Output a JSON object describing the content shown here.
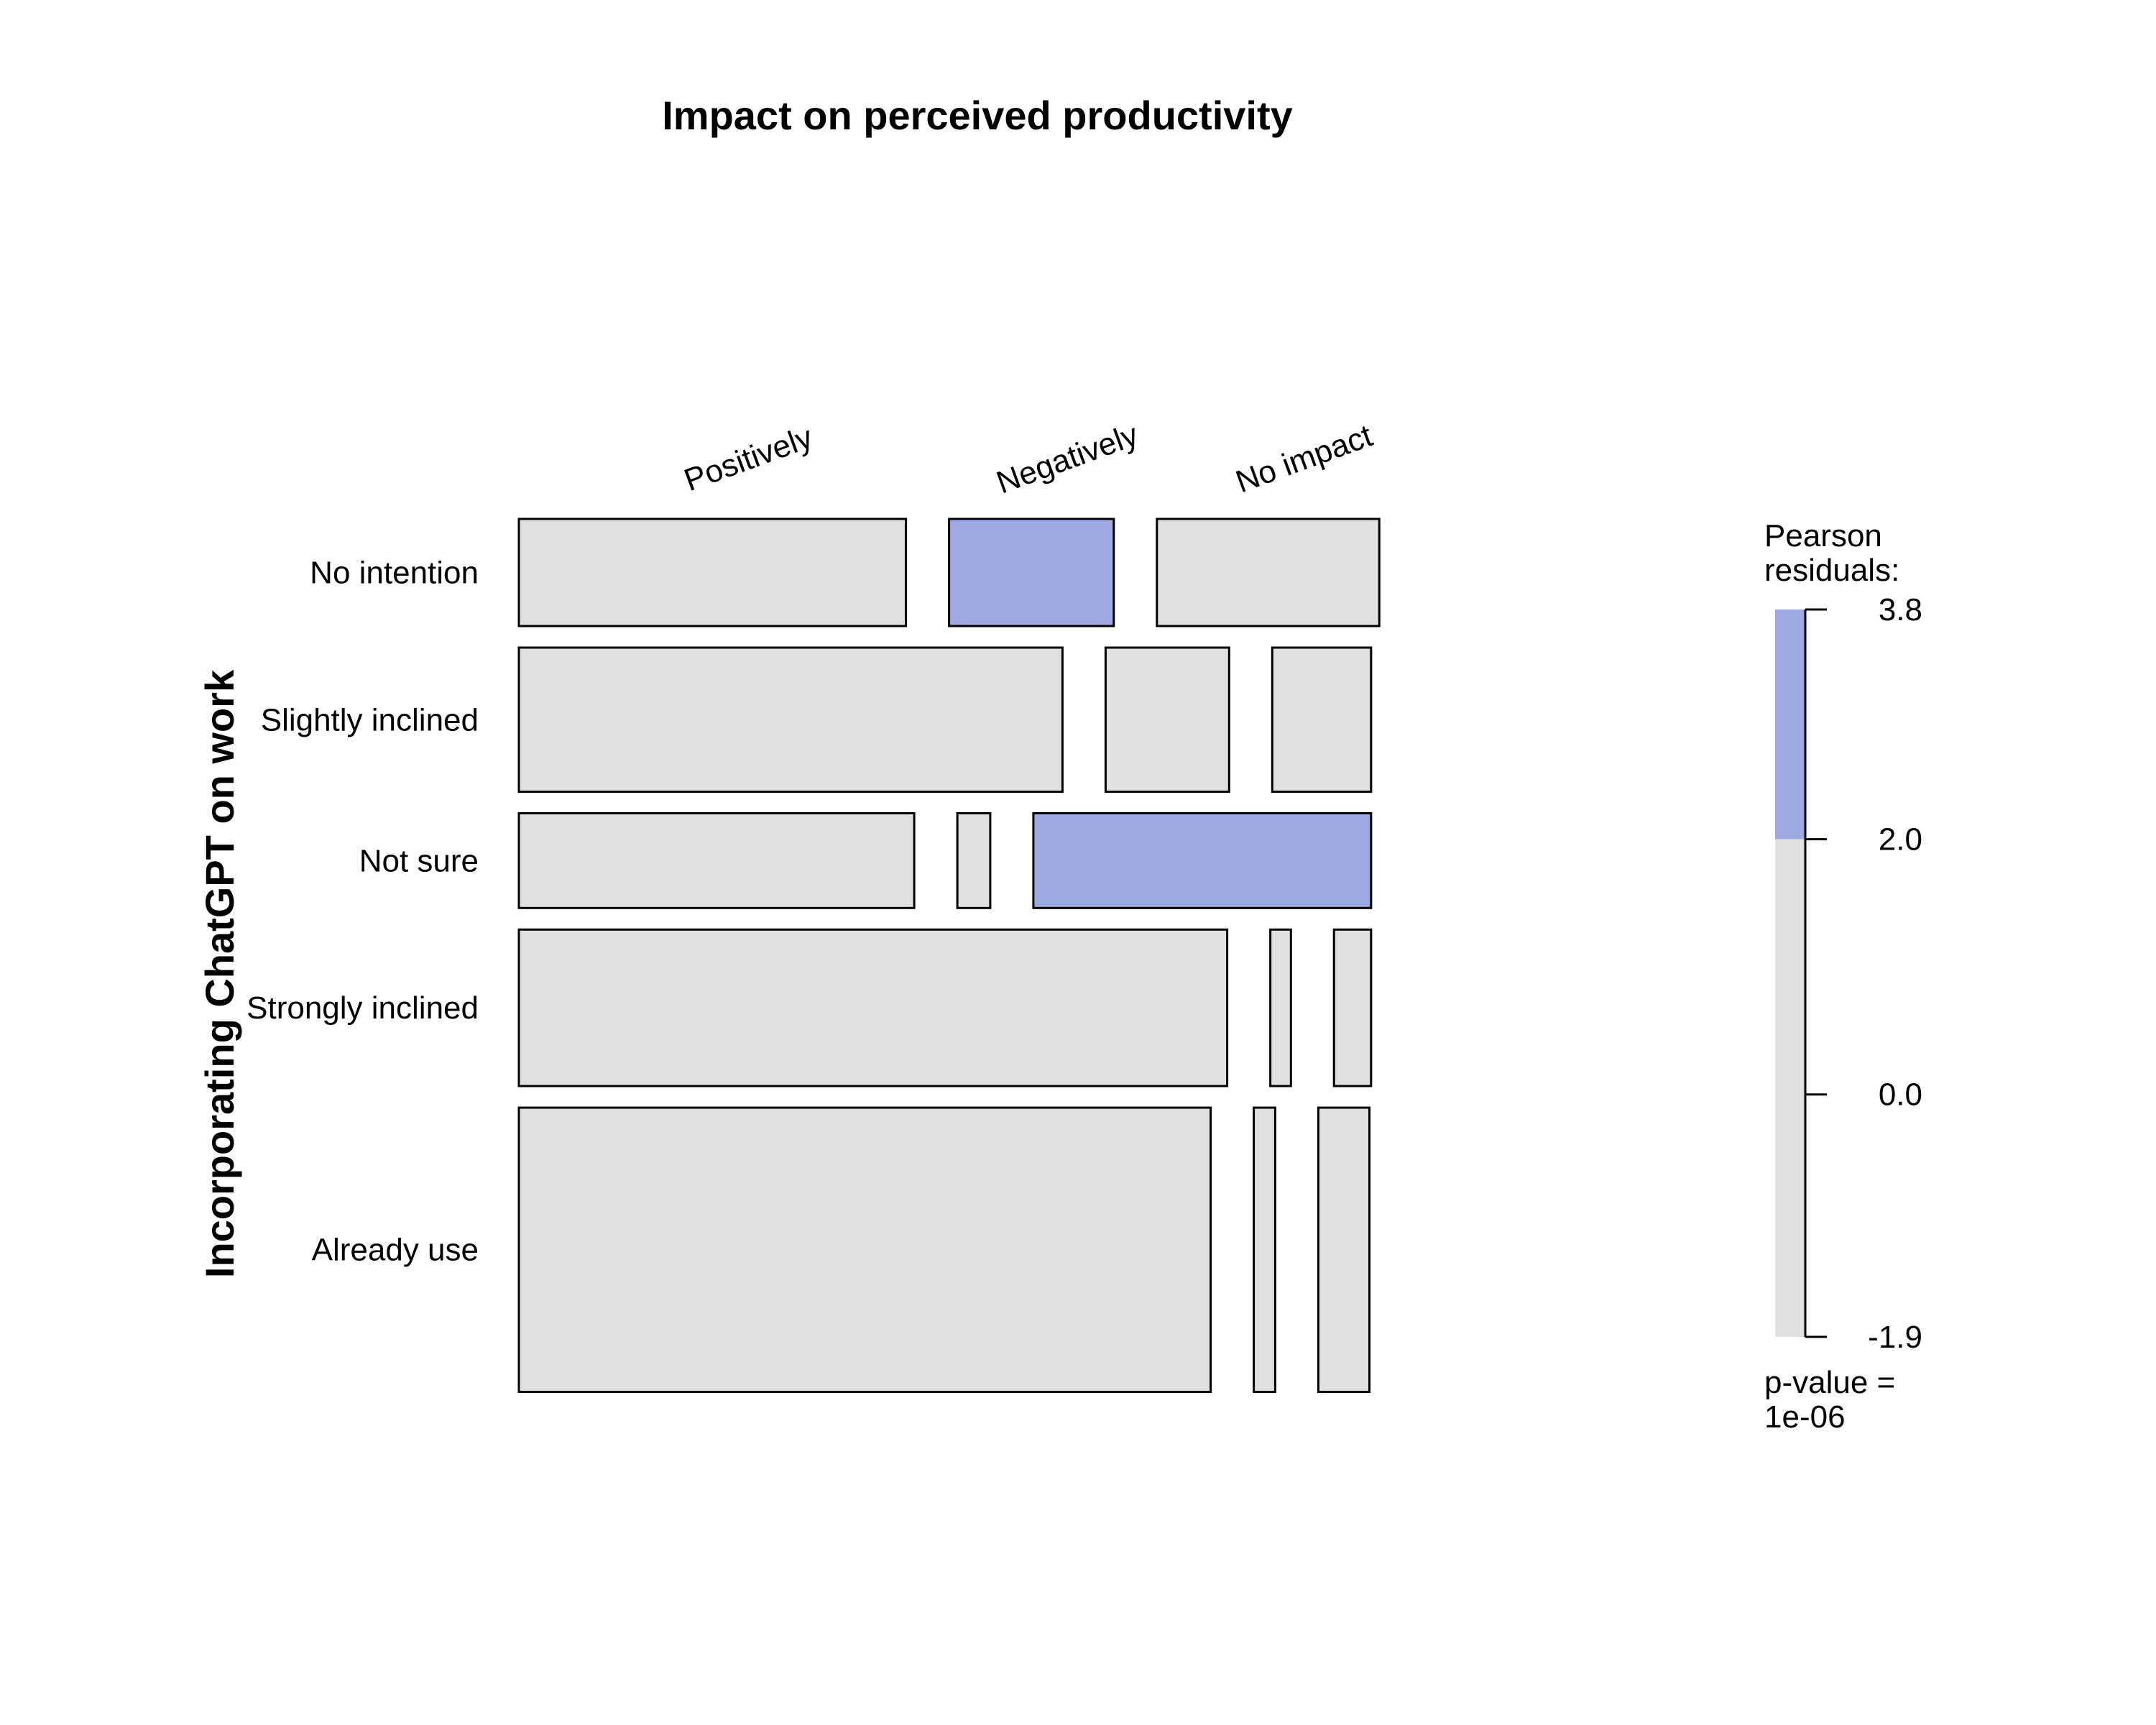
{
  "chart_data": {
    "type": "mosaic",
    "title": "Impact on perceived productivity",
    "ylabel": "Incorporating ChatGPT on work",
    "columns": [
      "Positively",
      "Negatively",
      "No impact"
    ],
    "rows": [
      {
        "label": "No intention",
        "proportions": [
          0.47,
          0.2,
          0.27
        ],
        "residual_fill": [
          "neutral",
          "positive",
          "neutral"
        ]
      },
      {
        "label": "Slightly inclined",
        "proportions": [
          0.66,
          0.15,
          0.12
        ],
        "residual_fill": [
          "neutral",
          "neutral",
          "neutral"
        ]
      },
      {
        "label": "Not sure",
        "proportions": [
          0.48,
          0.04,
          0.41
        ],
        "residual_fill": [
          "neutral",
          "neutral",
          "positive"
        ]
      },
      {
        "label": "Strongly inclined",
        "proportions": [
          0.86,
          0.025,
          0.045
        ],
        "residual_fill": [
          "neutral",
          "neutral",
          "neutral"
        ]
      },
      {
        "label": "Already use",
        "proportions": [
          0.84,
          0.026,
          0.062
        ],
        "residual_fill": [
          "neutral",
          "neutral",
          "neutral"
        ]
      }
    ],
    "row_proportions": [
      0.13,
      0.175,
      0.115,
      0.19,
      0.345
    ],
    "legend": {
      "title_line1": "Pearson",
      "title_line2": "residuals:",
      "ticks": [
        "3.8",
        "2.0",
        "0.0",
        "-1.9"
      ],
      "tick_values": [
        3.8,
        2.0,
        0.0,
        -1.9
      ],
      "range": [
        -1.9,
        3.8
      ],
      "threshold": 2.0,
      "pvalue_line1": "p-value =",
      "pvalue_line2": "1e-06"
    },
    "colors": {
      "positive": "#9ea8e2",
      "neutral": "#e0e0e0",
      "border": "#000000"
    }
  }
}
